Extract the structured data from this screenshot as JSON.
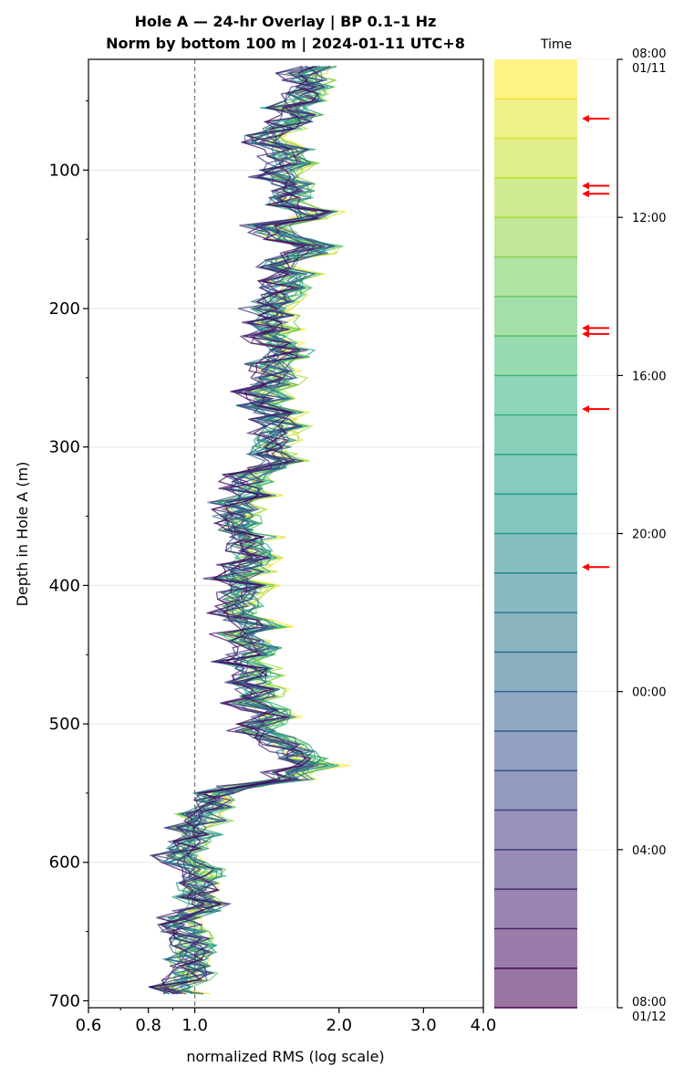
{
  "chart_data": {
    "type": "line",
    "title": "Hole A — 24-hr Overlay  |  BP 0.1–1 Hz",
    "subtitle": "Norm by bottom 100 m  |  2024-01-11 UTC+8",
    "xlabel": "normalized RMS  (log scale)",
    "ylabel": "Depth in Hole A (m)",
    "x_scale": "log",
    "xlim": [
      0.6,
      4.0
    ],
    "ylim": [
      705,
      20
    ],
    "x_ticks": [
      "0.6",
      "0.8",
      "1.0",
      "2.0",
      "3.0",
      "4.0"
    ],
    "y_ticks": [
      "100",
      "200",
      "300",
      "400",
      "500",
      "600",
      "700"
    ],
    "reference_line_x": 1.0,
    "grid": "horizontal",
    "profile_count": 24,
    "mean_profile": [
      [
        25,
        1.75
      ],
      [
        45,
        1.65
      ],
      [
        65,
        1.55
      ],
      [
        75,
        1.35
      ],
      [
        90,
        1.6
      ],
      [
        105,
        1.55
      ],
      [
        120,
        1.5
      ],
      [
        130,
        1.8
      ],
      [
        140,
        1.45
      ],
      [
        155,
        1.7
      ],
      [
        170,
        1.5
      ],
      [
        185,
        1.65
      ],
      [
        200,
        1.4
      ],
      [
        215,
        1.45
      ],
      [
        230,
        1.5
      ],
      [
        250,
        1.42
      ],
      [
        270,
        1.45
      ],
      [
        290,
        1.5
      ],
      [
        310,
        1.45
      ],
      [
        325,
        1.35
      ],
      [
        340,
        1.3
      ],
      [
        355,
        1.25
      ],
      [
        370,
        1.3
      ],
      [
        385,
        1.25
      ],
      [
        400,
        1.3
      ],
      [
        415,
        1.22
      ],
      [
        430,
        1.3
      ],
      [
        445,
        1.28
      ],
      [
        460,
        1.32
      ],
      [
        475,
        1.3
      ],
      [
        490,
        1.35
      ],
      [
        505,
        1.4
      ],
      [
        520,
        1.55
      ],
      [
        530,
        1.8
      ],
      [
        540,
        1.5
      ],
      [
        550,
        1.15
      ],
      [
        560,
        1.05
      ],
      [
        575,
        1.0
      ],
      [
        590,
        0.97
      ],
      [
        605,
        1.0
      ],
      [
        620,
        0.95
      ],
      [
        635,
        1.05
      ],
      [
        650,
        0.95
      ],
      [
        665,
        0.97
      ],
      [
        680,
        0.93
      ],
      [
        695,
        0.95
      ]
    ],
    "colorbar": {
      "title": "Time",
      "colormap": "viridis (reversed: yellow = 08:00 01/11, purple = 08:00 01/12)",
      "tick_labels": [
        {
          "hour": 0,
          "label": "08:00",
          "sublabel": "01/11"
        },
        {
          "hour": 4,
          "label": "12:00",
          "sublabel": ""
        },
        {
          "hour": 8,
          "label": "16:00",
          "sublabel": ""
        },
        {
          "hour": 12,
          "label": "20:00",
          "sublabel": ""
        },
        {
          "hour": 16,
          "label": "00:00",
          "sublabel": ""
        },
        {
          "hour": 20,
          "label": "04:00",
          "sublabel": ""
        },
        {
          "hour": 24,
          "label": "08:00",
          "sublabel": "01/12"
        }
      ],
      "arrow_hours": [
        1.5,
        3.2,
        3.4,
        6.8,
        6.95,
        8.85,
        12.85
      ],
      "arrow_color": "#ff0000"
    }
  }
}
